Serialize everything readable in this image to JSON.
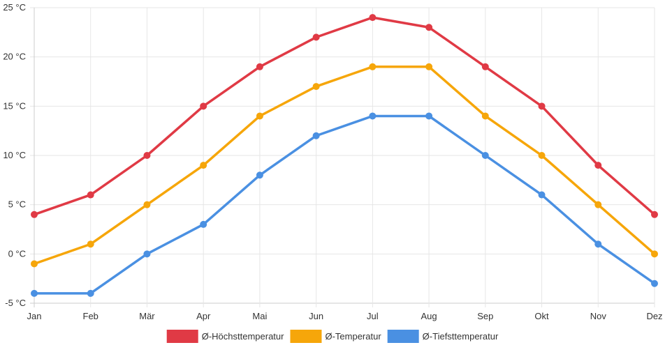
{
  "chart_data": {
    "type": "line",
    "title": "",
    "xlabel": "",
    "ylabel": "",
    "categories": [
      "Jan",
      "Feb",
      "Mär",
      "Apr",
      "Mai",
      "Jun",
      "Jul",
      "Aug",
      "Sep",
      "Okt",
      "Nov",
      "Dez"
    ],
    "ylim": [
      -5,
      25
    ],
    "yticks": [
      -5,
      0,
      5,
      10,
      15,
      20,
      25
    ],
    "ytick_labels": [
      "-5 °C",
      "0 °C",
      "5 °C",
      "10 °C",
      "15 °C",
      "20 °C",
      "25 °C"
    ],
    "grid": true,
    "legend_position": "bottom",
    "series": [
      {
        "name": "Ø-Höchsttemperatur",
        "color": "#e03a45",
        "values": [
          4,
          6,
          10,
          15,
          19,
          22,
          24,
          23,
          19,
          15,
          9,
          4
        ]
      },
      {
        "name": "Ø-Temperatur",
        "color": "#f6a60a",
        "values": [
          -1,
          1,
          5,
          9,
          14,
          17,
          19,
          19,
          14,
          10,
          5,
          0
        ]
      },
      {
        "name": "Ø-Tiefsttemperatur",
        "color": "#4a90e2",
        "values": [
          -4,
          -4,
          0,
          3,
          8,
          12,
          14,
          14,
          10,
          6,
          1,
          -3
        ]
      }
    ]
  }
}
